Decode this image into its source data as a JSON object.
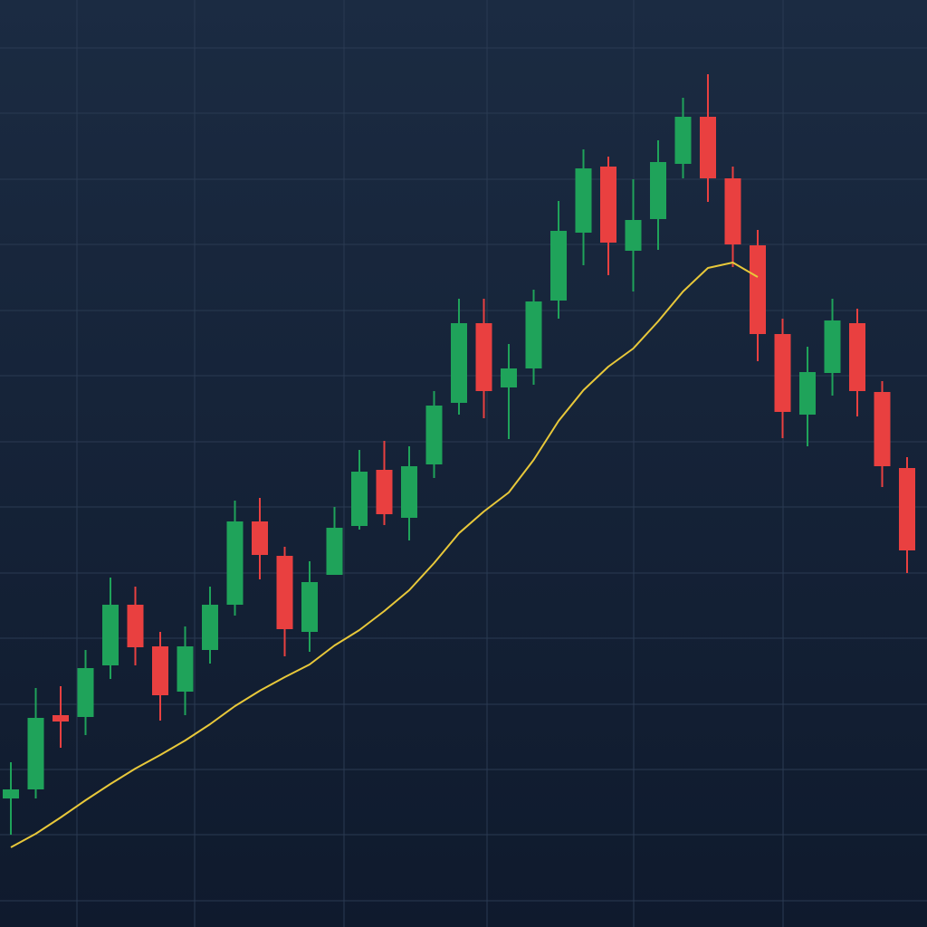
{
  "chart_data": {
    "type": "candlestick",
    "categories": [
      null,
      null,
      null,
      null,
      null,
      null,
      null,
      null,
      null,
      null,
      null,
      null,
      null,
      null,
      null,
      null,
      null,
      null,
      null,
      null,
      null,
      null,
      null,
      null,
      null,
      null,
      null,
      null,
      null,
      null,
      null,
      null,
      null,
      null,
      null,
      null,
      null
    ],
    "open": [
      142,
      152,
      234,
      232,
      289,
      356,
      310,
      260,
      306,
      356,
      448,
      410,
      326,
      389,
      443,
      505,
      452,
      511,
      579,
      667,
      596,
      617,
      692,
      767,
      840,
      747,
      782,
      843,
      895,
      827,
      753,
      655,
      566,
      612,
      667,
      591,
      507
    ],
    "high": [
      182,
      264,
      266,
      306,
      386,
      376,
      326,
      332,
      376,
      471,
      474,
      420,
      404,
      464,
      527,
      537,
      531,
      592,
      694,
      694,
      644,
      704,
      802,
      859,
      851,
      826,
      869,
      916,
      942,
      840,
      770,
      672,
      641,
      694,
      683,
      603,
      519
    ],
    "low": [
      102,
      142,
      198,
      212,
      274,
      289,
      228,
      234,
      291,
      344,
      384,
      299,
      304,
      389,
      439,
      444,
      427,
      496,
      566,
      562,
      539,
      599,
      672,
      731,
      720,
      702,
      748,
      827,
      801,
      729,
      625,
      540,
      531,
      587,
      564,
      486,
      391
    ],
    "close": [
      152,
      231,
      227,
      286,
      356,
      309,
      256,
      310,
      356,
      448,
      411,
      329,
      381,
      441,
      503,
      456,
      509,
      576,
      667,
      592,
      617,
      691,
      769,
      838,
      756,
      781,
      845,
      895,
      827,
      754,
      655,
      569,
      613,
      670,
      592,
      509,
      416
    ],
    "up_color": "#1fa35a",
    "down_color": "#e94040",
    "moving_average": {
      "color": "#e8c83a",
      "values": [
        88,
        103,
        121,
        140,
        158,
        175,
        190,
        206,
        224,
        244,
        261,
        276,
        290,
        311,
        328,
        349,
        372,
        402,
        435,
        459,
        480,
        516,
        559,
        593,
        619,
        639,
        669,
        702,
        728,
        734,
        718,
        null,
        null,
        null,
        null,
        null,
        null
      ]
    },
    "ylim": [
      0,
      1024
    ],
    "yticks": [
      29,
      102,
      174,
      246,
      319,
      391,
      464,
      536,
      609,
      681,
      754,
      826,
      899,
      971
    ],
    "grid": true
  }
}
